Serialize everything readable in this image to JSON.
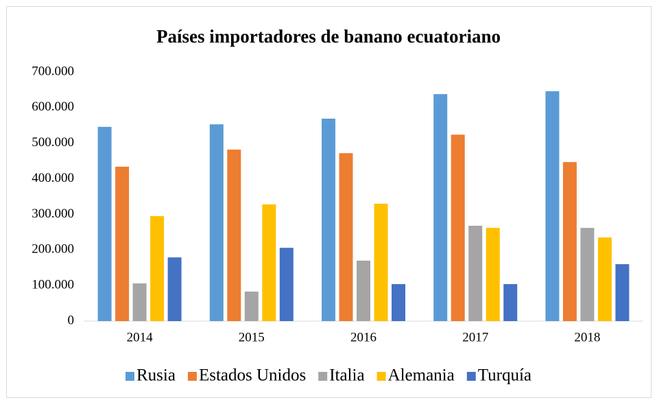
{
  "chart_data": {
    "type": "bar",
    "title": "Países importadores de banano ecuatoriano",
    "categories": [
      "2014",
      "2015",
      "2016",
      "2017",
      "2018"
    ],
    "series": [
      {
        "name": "Rusia",
        "color": "#5b9bd5",
        "values": [
          546000,
          553000,
          569000,
          638000,
          646000
        ]
      },
      {
        "name": "Estados Unidos",
        "color": "#ed7d31",
        "values": [
          434000,
          482000,
          472000,
          524000,
          447000
        ]
      },
      {
        "name": "Italia",
        "color": "#a5a5a5",
        "values": [
          106000,
          83000,
          170000,
          268000,
          262000
        ]
      },
      {
        "name": "Alemania",
        "color": "#ffc000",
        "values": [
          295000,
          328000,
          330000,
          262000,
          235000
        ]
      },
      {
        "name": "Turquía",
        "color": "#4472c4",
        "values": [
          179000,
          206000,
          104000,
          104000,
          160000
        ]
      }
    ],
    "ylim": [
      0,
      700000
    ],
    "yticks": [
      0,
      {
        "value": 100000,
        "label": "100.000"
      },
      {
        "value": 200000,
        "label": "200.000"
      },
      {
        "value": 300000,
        "label": "300.000"
      },
      {
        "value": 400000,
        "label": "400.000"
      },
      {
        "value": 500000,
        "label": "500.000"
      },
      {
        "value": 600000,
        "label": "600.000"
      },
      {
        "value": 700000,
        "label": "700.000"
      }
    ],
    "grid": false,
    "legend": "bottom"
  }
}
